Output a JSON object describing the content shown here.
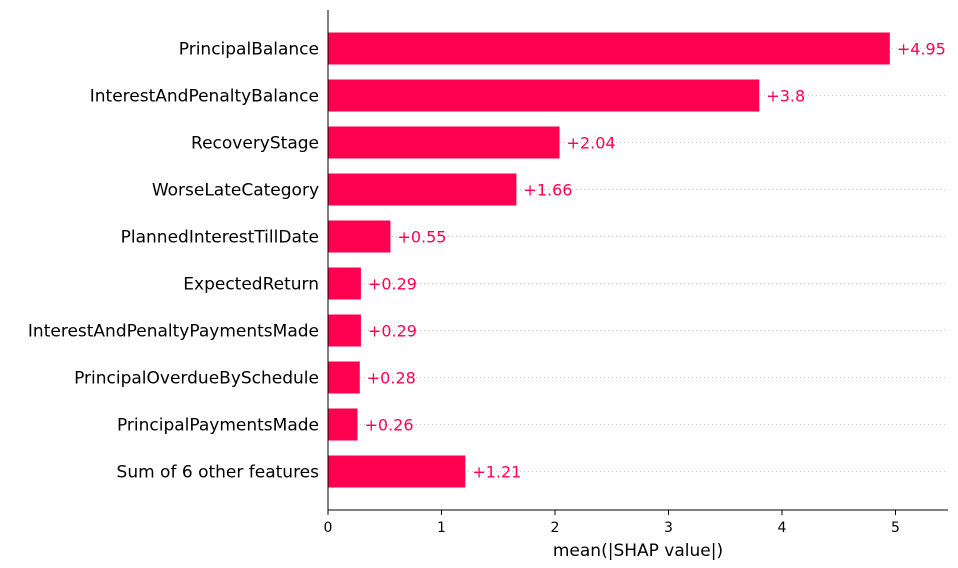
{
  "chart_data": {
    "type": "bar",
    "orientation": "horizontal",
    "categories": [
      "PrincipalBalance",
      "InterestAndPenaltyBalance",
      "RecoveryStage",
      "WorseLateCategory",
      "PlannedInterestTillDate",
      "ExpectedReturn",
      "InterestAndPenaltyPaymentsMade",
      "PrincipalOverdueBySchedule",
      "PrincipalPaymentsMade",
      "Sum of 6 other features"
    ],
    "values": [
      4.95,
      3.8,
      2.04,
      1.66,
      0.55,
      0.29,
      0.29,
      0.28,
      0.26,
      1.21
    ],
    "value_labels": [
      "+4.95",
      "+3.8",
      "+2.04",
      "+1.66",
      "+0.55",
      "+0.29",
      "+0.29",
      "+0.28",
      "+0.26",
      "+1.21"
    ],
    "xlabel": "mean(|SHAP value|)",
    "x_ticks": [
      "0",
      "1",
      "2",
      "3",
      "4",
      "5"
    ],
    "xlim": [
      0,
      5.45
    ],
    "bar_color": "#ff0051",
    "grid": "dotted horizontal guide lines per row"
  }
}
